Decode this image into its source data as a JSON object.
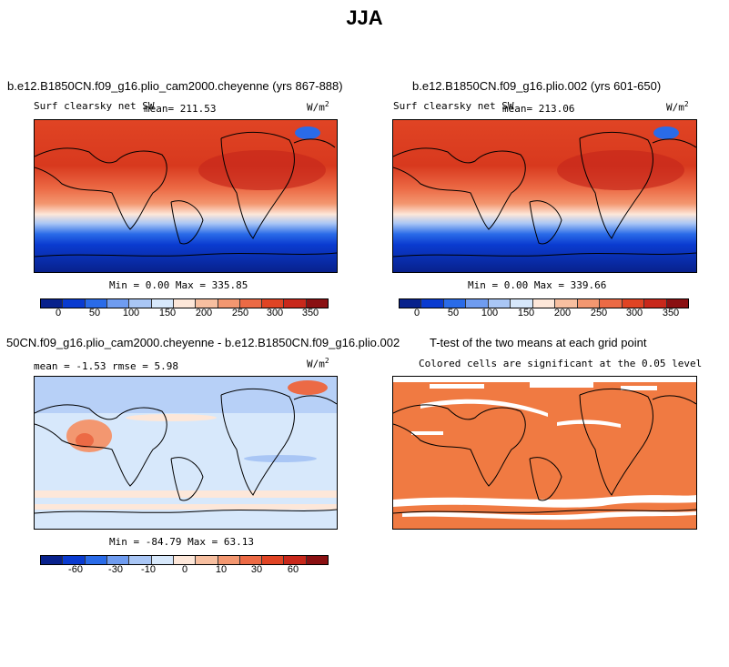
{
  "title": "JJA",
  "panels": [
    {
      "title": "b.e12.B1850CN.f09_g16.plio_cam2000.cheyenne (yrs 867-888)",
      "variable": "Surf clearsky net SW",
      "mean": "mean= 211.53",
      "units": "W/m",
      "units_exp": "2",
      "minmax": "Min =   0.00 Max = 335.85",
      "colorbar_ticks": [
        "0",
        "50",
        "100",
        "150",
        "200",
        "250",
        "300",
        "350"
      ]
    },
    {
      "title": "b.e12.B1850CN.f09_g16.plio.002 (yrs 601-650)",
      "variable": "Surf clearsky net SW",
      "mean": "mean= 213.06",
      "units": "W/m",
      "units_exp": "2",
      "minmax": "Min =   0.00 Max = 339.66",
      "colorbar_ticks": [
        "0",
        "50",
        "100",
        "150",
        "200",
        "250",
        "300",
        "350"
      ]
    },
    {
      "title": "50CN.f09_g16.plio_cam2000.cheyenne - b.e12.B1850CN.f09_g16.plio.002",
      "stats": "mean =  -1.53    rmse =   5.98",
      "units": "W/m",
      "units_exp": "2",
      "minmax": "Min = -84.79 Max =  63.13",
      "colorbar_ticks": [
        "-60",
        "-30",
        "-10",
        "0",
        "10",
        "30",
        "60"
      ]
    },
    {
      "title": "T-test of the two means at each grid point",
      "subtitle": "Colored cells are significant at the 0.05 level"
    }
  ],
  "colors": {
    "abs_scale": [
      "#08218c",
      "#0a3bd0",
      "#2a6be8",
      "#6f9cf0",
      "#a9c6f5",
      "#d7e8fb",
      "#fde7d9",
      "#f7bfa0",
      "#f39770",
      "#ec6a45",
      "#e04424",
      "#c8281b",
      "#8a1012"
    ],
    "diff_scale": [
      "#08218c",
      "#0a3bd0",
      "#2a6be8",
      "#6f9cf0",
      "#a9c6f5",
      "#d7e8fb",
      "#fde7d9",
      "#f7bfa0",
      "#f39770",
      "#ec6a45",
      "#e04424",
      "#c8281b",
      "#8a1012"
    ],
    "ttest": "#f07a42"
  },
  "chart_data": [
    {
      "type": "heatmap",
      "title": "Surf clearsky net SW",
      "summary": {
        "mean": 211.53,
        "min": 0.0,
        "max": 335.85
      },
      "levels": [
        0,
        50,
        100,
        150,
        200,
        250,
        300,
        350
      ]
    },
    {
      "type": "heatmap",
      "title": "Surf clearsky net SW",
      "summary": {
        "mean": 213.06,
        "min": 0.0,
        "max": 339.66
      },
      "levels": [
        0,
        50,
        100,
        150,
        200,
        250,
        300,
        350
      ]
    },
    {
      "type": "heatmap",
      "summary": {
        "mean": -1.53,
        "rmse": 5.98,
        "min": -84.79,
        "max": 63.13
      },
      "levels": [
        -60,
        -30,
        -10,
        0,
        10,
        30,
        60
      ]
    }
  ]
}
